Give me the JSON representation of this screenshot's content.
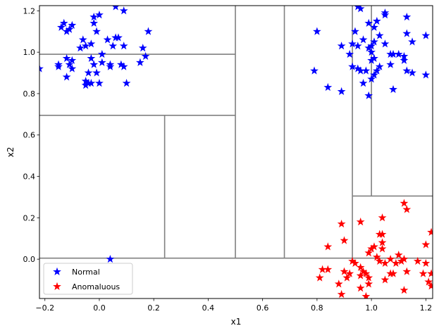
{
  "chart_data": {
    "type": "scatter",
    "xlabel": "x1",
    "ylabel": "x2",
    "xlim": [
      -0.22,
      1.225
    ],
    "ylim": [
      -0.19,
      1.225
    ],
    "x_ticks": [
      -0.2,
      0.0,
      0.2,
      0.4,
      0.6,
      0.8,
      1.0,
      1.2
    ],
    "x_tick_labels": [
      "−0.2",
      "0.0",
      "0.2",
      "0.4",
      "0.6",
      "0.8",
      "1.0",
      "1.2"
    ],
    "y_ticks": [
      0.0,
      0.2,
      0.4,
      0.6,
      0.8,
      1.0,
      1.2
    ],
    "y_tick_labels": [
      "0.0",
      "0.2",
      "0.4",
      "0.6",
      "0.8",
      "1.0",
      "1.2"
    ],
    "grid": false,
    "legend_position": "lower-left",
    "colors": {
      "Normal": "#0000ff",
      "Anomaluous": "#ff0000",
      "split_lines": "#808080"
    },
    "series": [
      {
        "name": "Normal",
        "marker": "star",
        "points": [
          [
            -0.22,
            0.92
          ],
          [
            -0.14,
            1.12
          ],
          [
            -0.13,
            1.14
          ],
          [
            -0.12,
            1.1
          ],
          [
            -0.1,
            1.13
          ],
          [
            -0.11,
            1.11
          ],
          [
            -0.02,
            1.14
          ],
          [
            -0.02,
            1.17
          ],
          [
            -0.01,
            1.1
          ],
          [
            0.0,
            1.18
          ],
          [
            0.06,
            1.22
          ],
          [
            0.09,
            1.2
          ],
          [
            -0.06,
            1.06
          ],
          [
            -0.05,
            1.03
          ],
          [
            -0.03,
            1.04
          ],
          [
            -0.07,
            1.02
          ],
          [
            0.03,
            1.06
          ],
          [
            0.07,
            1.07
          ],
          [
            0.06,
            1.07
          ],
          [
            0.05,
            1.03
          ],
          [
            0.09,
            1.03
          ],
          [
            0.16,
            1.02
          ],
          [
            0.18,
            1.1
          ],
          [
            0.17,
            0.98
          ],
          [
            0.15,
            0.95
          ],
          [
            -0.15,
            0.94
          ],
          [
            -0.15,
            0.93
          ],
          [
            -0.12,
            0.97
          ],
          [
            -0.11,
            0.94
          ],
          [
            -0.1,
            0.96
          ],
          [
            -0.1,
            0.92
          ],
          [
            -0.12,
            0.88
          ],
          [
            -0.03,
            0.97
          ],
          [
            -0.02,
            0.94
          ],
          [
            0.01,
            0.99
          ],
          [
            0.01,
            0.95
          ],
          [
            0.04,
            0.93
          ],
          [
            0.04,
            0.94
          ],
          [
            0.08,
            0.94
          ],
          [
            0.09,
            0.93
          ],
          [
            -0.04,
            0.9
          ],
          [
            -0.01,
            0.9
          ],
          [
            -0.05,
            0.86
          ],
          [
            -0.04,
            0.85
          ],
          [
            -0.03,
            0.85
          ],
          [
            -0.05,
            0.84
          ],
          [
            0.0,
            0.85
          ],
          [
            0.1,
            0.85
          ],
          [
            0.04,
            0.0
          ],
          [
            0.8,
            1.1
          ],
          [
            0.89,
            1.03
          ],
          [
            0.79,
            0.91
          ],
          [
            0.84,
            0.83
          ],
          [
            0.89,
            0.81
          ],
          [
            0.95,
            1.22
          ],
          [
            0.96,
            1.21
          ],
          [
            0.99,
            1.14
          ],
          [
            1.01,
            1.12
          ],
          [
            1.02,
            1.15
          ],
          [
            0.94,
            1.1
          ],
          [
            0.97,
            1.06
          ],
          [
            1.03,
            1.08
          ],
          [
            0.93,
            1.04
          ],
          [
            0.95,
            1.03
          ],
          [
            1.0,
            1.03
          ],
          [
            1.01,
            1.05
          ],
          [
            1.05,
            1.04
          ],
          [
            1.0,
            1.0
          ],
          [
            0.99,
            1.02
          ],
          [
            1.01,
            0.97
          ],
          [
            1.0,
            0.96
          ],
          [
            0.92,
            0.99
          ],
          [
            0.93,
            0.93
          ],
          [
            0.95,
            0.92
          ],
          [
            0.96,
            0.91
          ],
          [
            0.98,
            0.91
          ],
          [
            1.02,
            0.91
          ],
          [
            0.97,
            0.85
          ],
          [
            0.99,
            0.79
          ],
          [
            1.0,
            0.87
          ],
          [
            1.05,
            1.19
          ],
          [
            1.05,
            1.18
          ],
          [
            1.13,
            1.17
          ],
          [
            1.13,
            1.09
          ],
          [
            1.15,
            1.05
          ],
          [
            1.2,
            1.08
          ],
          [
            1.07,
            0.99
          ],
          [
            1.08,
            0.99
          ],
          [
            1.1,
            0.99
          ],
          [
            1.12,
            0.98
          ],
          [
            1.12,
            0.96
          ],
          [
            1.07,
            0.94
          ],
          [
            1.13,
            0.91
          ],
          [
            1.15,
            0.9
          ],
          [
            1.2,
            0.89
          ],
          [
            1.08,
            0.82
          ],
          [
            1.03,
            0.93
          ],
          [
            1.01,
            0.89
          ]
        ]
      },
      {
        "name": "Anomaluous",
        "marker": "star",
        "points": [
          [
            0.89,
            0.17
          ],
          [
            0.96,
            0.18
          ],
          [
            1.04,
            0.2
          ],
          [
            1.12,
            0.27
          ],
          [
            1.13,
            0.24
          ],
          [
            1.03,
            0.12
          ],
          [
            1.04,
            0.12
          ],
          [
            1.22,
            0.13
          ],
          [
            0.84,
            0.06
          ],
          [
            0.9,
            0.09
          ],
          [
            1.04,
            0.08
          ],
          [
            1.0,
            0.05
          ],
          [
            1.01,
            0.06
          ],
          [
            1.04,
            0.05
          ],
          [
            0.99,
            0.03
          ],
          [
            1.02,
            0.01
          ],
          [
            1.07,
            0.0
          ],
          [
            1.1,
            0.02
          ],
          [
            1.11,
            -0.01
          ],
          [
            1.12,
            0.0
          ],
          [
            1.2,
            0.07
          ],
          [
            1.03,
            -0.01
          ],
          [
            1.05,
            -0.02
          ],
          [
            1.09,
            -0.02
          ],
          [
            1.17,
            -0.01
          ],
          [
            1.2,
            -0.02
          ],
          [
            0.93,
            -0.01
          ],
          [
            0.94,
            -0.02
          ],
          [
            0.96,
            -0.04
          ],
          [
            0.84,
            -0.05
          ],
          [
            0.82,
            -0.05
          ],
          [
            0.81,
            -0.09
          ],
          [
            0.9,
            -0.06
          ],
          [
            0.92,
            -0.07
          ],
          [
            0.91,
            -0.09
          ],
          [
            0.97,
            -0.06
          ],
          [
            0.98,
            -0.07
          ],
          [
            0.96,
            -0.08
          ],
          [
            0.99,
            -0.09
          ],
          [
            1.07,
            -0.07
          ],
          [
            1.08,
            -0.07
          ],
          [
            1.13,
            -0.06
          ],
          [
            1.19,
            -0.07
          ],
          [
            1.22,
            -0.07
          ],
          [
            1.21,
            -0.11
          ],
          [
            0.88,
            -0.12
          ],
          [
            0.99,
            -0.12
          ],
          [
            1.05,
            -0.1
          ],
          [
            0.96,
            -0.14
          ],
          [
            0.89,
            -0.17
          ],
          [
            0.98,
            -0.18
          ],
          [
            1.12,
            -0.15
          ],
          [
            1.22,
            -0.13
          ]
        ]
      }
    ],
    "split_lines": [
      {
        "orient": "h",
        "at": 0.005,
        "from": -0.22,
        "to": 1.225
      },
      {
        "orient": "v",
        "at": 0.5,
        "from": 0.005,
        "to": 1.225
      },
      {
        "orient": "h",
        "at": 0.695,
        "from": -0.22,
        "to": 0.5
      },
      {
        "orient": "h",
        "at": 0.99,
        "from": -0.22,
        "to": 0.5
      },
      {
        "orient": "v",
        "at": 0.24,
        "from": 0.005,
        "to": 0.695
      },
      {
        "orient": "v",
        "at": 0.68,
        "from": 0.005,
        "to": 1.225
      },
      {
        "orient": "v",
        "at": 0.93,
        "from": 0.005,
        "to": 1.225
      },
      {
        "orient": "v",
        "at": 1.0,
        "from": 0.305,
        "to": 1.225
      },
      {
        "orient": "h",
        "at": 0.305,
        "from": 0.93,
        "to": 1.225
      }
    ]
  }
}
